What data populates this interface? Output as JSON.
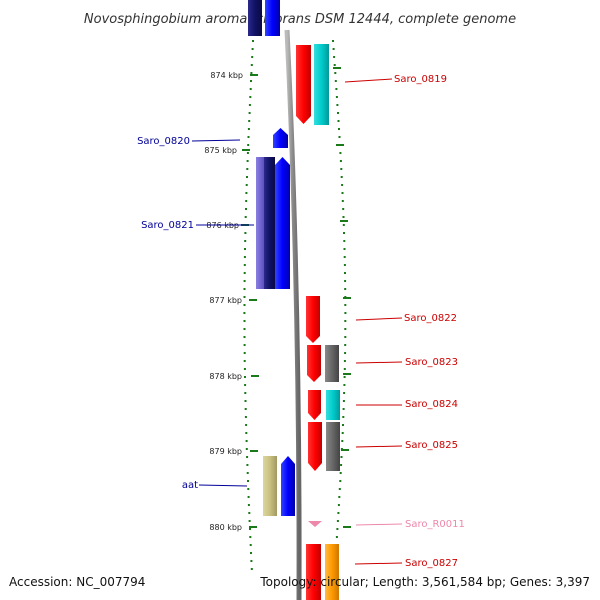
{
  "title": "Novosphingobium aromaticivorans DSM 12444, complete genome",
  "footer": {
    "accession": "Accession: NC_007794",
    "topology": "Topology: circular; Length: 3,561,584 bp; Genes: 3,397"
  },
  "scale": {
    "ticks": [
      "874 kbp",
      "875 kbp",
      "876 kbp",
      "877 kbp",
      "878 kbp",
      "879 kbp",
      "880 kbp"
    ]
  },
  "gene_labels": [
    {
      "text": "Saro_0819",
      "color": "#cc0000"
    },
    {
      "text": "Saro_0820",
      "color": "#000099"
    },
    {
      "text": "Saro_0821",
      "color": "#000099"
    },
    {
      "text": "Saro_0822",
      "color": "#cc0000"
    },
    {
      "text": "Saro_0823",
      "color": "#cc0000"
    },
    {
      "text": "Saro_0824",
      "color": "#cc0000"
    },
    {
      "text": "Saro_0825",
      "color": "#cc0000"
    },
    {
      "text": "aat",
      "color": "#000099"
    },
    {
      "text": "Saro_R0011",
      "color": "#ee88aa"
    },
    {
      "text": "Saro_0827",
      "color": "#cc0000"
    }
  ],
  "colors": {
    "forward": "#ff0000",
    "reverse": "#0000ff",
    "backbone": "#888888",
    "ticks": "#1a7a1a",
    "cyan": "#00cccc",
    "gray": "#666666",
    "olive": "#c8c080",
    "slate": "#6a5acd",
    "orange": "#ff9900",
    "pink": "#ee88aa"
  }
}
